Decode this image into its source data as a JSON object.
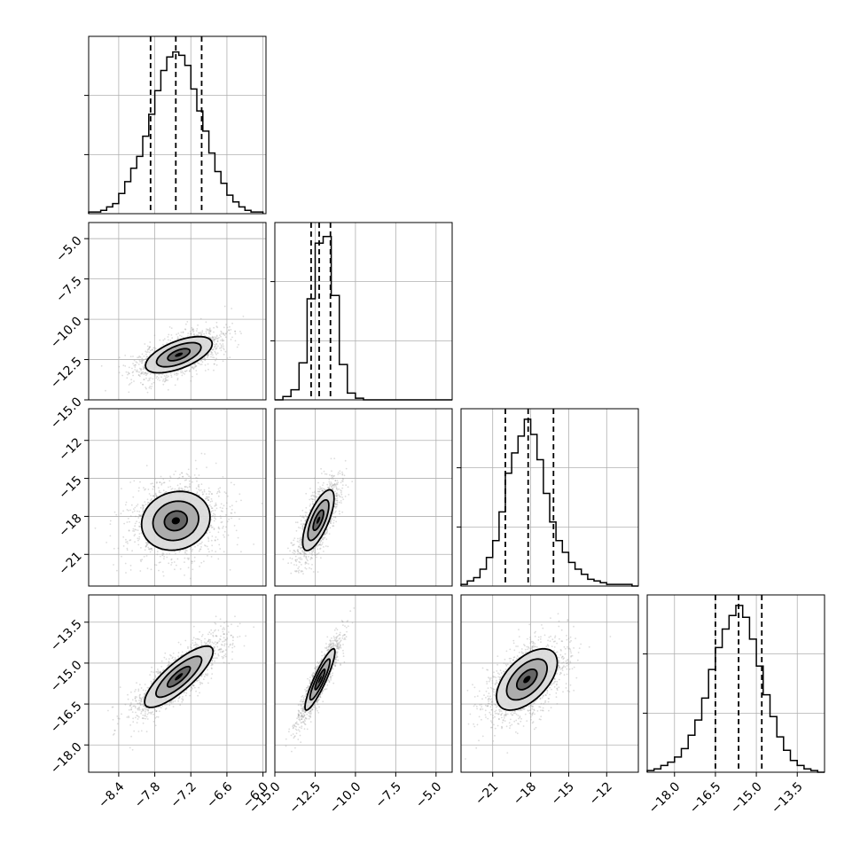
{
  "figure": {
    "type": "corner-plot",
    "n_params": 4
  },
  "colors": {
    "line": "#000000",
    "grid": "#b0b0b0",
    "points": "#9a9a9a",
    "frame": "#000000"
  },
  "chart_data": [
    {
      "type": "histogram",
      "row": 0,
      "col": 0,
      "xlim": [
        -8.9,
        -5.95
      ],
      "bins": [
        -8.85,
        -8.75,
        -8.65,
        -8.55,
        -8.45,
        -8.35,
        -8.25,
        -8.15,
        -8.05,
        -7.95,
        -7.85,
        -7.75,
        -7.65,
        -7.55,
        -7.45,
        -7.35,
        -7.25,
        -7.15,
        -7.05,
        -6.95,
        -6.85,
        -6.75,
        -6.65,
        -6.55,
        -6.45,
        -6.35,
        -6.25,
        -6.15,
        -6.05
      ],
      "counts": [
        0.01,
        0.01,
        0.02,
        0.04,
        0.06,
        0.12,
        0.19,
        0.27,
        0.34,
        0.46,
        0.59,
        0.73,
        0.85,
        0.93,
        0.96,
        0.94,
        0.88,
        0.74,
        0.61,
        0.49,
        0.36,
        0.25,
        0.18,
        0.11,
        0.07,
        0.04,
        0.02,
        0.01,
        0.01
      ],
      "quantiles": [
        -7.87,
        -7.45,
        -7.02
      ],
      "ymax": 1.0
    },
    {
      "type": "histogram",
      "row": 1,
      "col": 1,
      "xlim": [
        -15.0,
        -4.0
      ],
      "bins": [
        -14.75,
        -14.25,
        -13.75,
        -13.25,
        -12.75,
        -12.25,
        -11.75,
        -11.25,
        -10.75,
        -10.25,
        -9.75,
        -9.25,
        -8.75,
        -8.25,
        -7.75,
        -7.25,
        -6.75,
        -6.25,
        -5.75,
        -5.25,
        -4.75,
        -4.25
      ],
      "counts": [
        0.0,
        0.02,
        0.06,
        0.22,
        0.6,
        0.93,
        0.97,
        0.62,
        0.21,
        0.04,
        0.01,
        0.0,
        0.0,
        0.0,
        0.0,
        0.0,
        0.0,
        0.0,
        0.0,
        0.0,
        0.0,
        0.0
      ],
      "quantiles": [
        -12.75,
        -12.25,
        -11.55
      ],
      "ymax": 1.0
    },
    {
      "type": "histogram",
      "row": 2,
      "col": 2,
      "xlim": [
        -23.5,
        -9.5
      ],
      "bins": [
        -23.25,
        -22.75,
        -22.25,
        -21.75,
        -21.25,
        -20.75,
        -20.25,
        -19.75,
        -19.25,
        -18.75,
        -18.25,
        -17.75,
        -17.25,
        -16.75,
        -16.25,
        -15.75,
        -15.25,
        -14.75,
        -14.25,
        -13.75,
        -13.25,
        -12.75,
        -12.25,
        -11.75,
        -11.25,
        -10.75,
        -10.25,
        -9.75
      ],
      "counts": [
        0.01,
        0.03,
        0.05,
        0.1,
        0.17,
        0.27,
        0.44,
        0.67,
        0.79,
        0.89,
        0.99,
        0.9,
        0.75,
        0.55,
        0.38,
        0.27,
        0.2,
        0.14,
        0.1,
        0.07,
        0.04,
        0.03,
        0.02,
        0.01,
        0.01,
        0.01,
        0.01,
        0.0
      ],
      "quantiles": [
        -20.0,
        -18.2,
        -16.2
      ],
      "ymax": 1.0
    },
    {
      "type": "histogram",
      "row": 3,
      "col": 3,
      "xlim": [
        -19.0,
        -12.5
      ],
      "bins": [
        -18.875,
        -18.625,
        -18.375,
        -18.125,
        -17.875,
        -17.625,
        -17.375,
        -17.125,
        -16.875,
        -16.625,
        -16.375,
        -16.125,
        -15.875,
        -15.625,
        -15.375,
        -15.125,
        -14.875,
        -14.625,
        -14.375,
        -14.125,
        -13.875,
        -13.625,
        -13.375,
        -13.125,
        -12.875,
        -12.625
      ],
      "counts": [
        0.01,
        0.02,
        0.04,
        0.06,
        0.09,
        0.14,
        0.22,
        0.31,
        0.44,
        0.61,
        0.74,
        0.85,
        0.93,
        0.99,
        0.92,
        0.79,
        0.63,
        0.46,
        0.33,
        0.21,
        0.13,
        0.07,
        0.04,
        0.02,
        0.01,
        0.0
      ],
      "quantiles": [
        -16.5,
        -15.65,
        -14.8
      ],
      "ymax": 1.0
    },
    {
      "type": "scatter",
      "row": 1,
      "col": 0,
      "xlim": [
        -8.9,
        -5.95
      ],
      "ylim": [
        -15.0,
        -4.0
      ],
      "center": [
        -7.4,
        -12.2
      ],
      "sd": [
        0.37,
        0.75
      ],
      "rho": 0.6,
      "contour_levels": [
        1.5,
        1.0,
        0.5
      ],
      "n_points": 1500,
      "seed": 11
    },
    {
      "type": "scatter",
      "row": 2,
      "col": 0,
      "xlim": [
        -8.9,
        -5.95
      ],
      "ylim": [
        -23.5,
        -9.5
      ],
      "center": [
        -7.45,
        -18.35
      ],
      "sd": [
        0.38,
        1.55
      ],
      "rho": 0.12,
      "contour_levels": [
        1.5,
        1.0,
        0.5
      ],
      "n_points": 1500,
      "seed": 23
    },
    {
      "type": "scatter",
      "row": 2,
      "col": 1,
      "xlim": [
        -15.0,
        -4.0
      ],
      "ylim": [
        -23.5,
        -9.5
      ],
      "center": [
        -12.3,
        -18.3
      ],
      "sd": [
        0.65,
        1.6
      ],
      "rho": 0.72,
      "contour_levels": [
        1.5,
        1.0,
        0.5
      ],
      "n_points": 1500,
      "seed": 37
    },
    {
      "type": "scatter",
      "row": 3,
      "col": 0,
      "xlim": [
        -8.9,
        -5.95
      ],
      "ylim": [
        -19.0,
        -12.5
      ],
      "center": [
        -7.4,
        -15.5
      ],
      "sd": [
        0.38,
        0.75
      ],
      "rho": 0.82,
      "contour_levels": [
        1.5,
        1.0,
        0.5
      ],
      "n_points": 1500,
      "seed": 41
    },
    {
      "type": "scatter",
      "row": 3,
      "col": 1,
      "xlim": [
        -15.0,
        -4.0
      ],
      "ylim": [
        -19.0,
        -12.5
      ],
      "center": [
        -12.2,
        -15.6
      ],
      "sd": [
        0.62,
        0.75
      ],
      "rho": 0.9,
      "contour_levels": [
        1.5,
        1.0,
        0.5
      ],
      "n_points": 1500,
      "seed": 53
    },
    {
      "type": "scatter",
      "row": 3,
      "col": 2,
      "xlim": [
        -23.5,
        -9.5
      ],
      "ylim": [
        -19.0,
        -12.5
      ],
      "center": [
        -18.3,
        -15.6
      ],
      "sd": [
        1.6,
        0.75
      ],
      "rho": 0.55,
      "contour_levels": [
        1.5,
        1.0,
        0.5
      ],
      "n_points": 1500,
      "seed": 67
    }
  ],
  "axes": {
    "x": [
      {
        "col": 0,
        "ticks": [
          -8.4,
          -7.8,
          -7.2,
          -6.6,
          -6.0
        ],
        "labels": [
          "−8.4",
          "−7.8",
          "−7.2",
          "−6.6",
          "−6.0"
        ]
      },
      {
        "col": 1,
        "ticks": [
          -15.0,
          -12.5,
          -10.0,
          -7.5,
          -5.0
        ],
        "labels": [
          "−15.0",
          "−12.5",
          "−10.0",
          "−7.5",
          "−5.0"
        ]
      },
      {
        "col": 2,
        "ticks": [
          -21,
          -18,
          -15,
          -12
        ],
        "labels": [
          "−21",
          "−18",
          "−15",
          "−12"
        ]
      },
      {
        "col": 3,
        "ticks": [
          -18.0,
          -16.5,
          -15.0,
          -13.5
        ],
        "labels": [
          "−18.0",
          "−16.5",
          "−15.0",
          "−13.5"
        ]
      }
    ],
    "y": [
      {
        "row": 1,
        "ticks": [
          -5.0,
          -7.5,
          -10.0,
          -12.5,
          -15.0
        ],
        "labels": [
          "−5.0",
          "−7.5",
          "−10.0",
          "−12.5",
          "−15.0"
        ]
      },
      {
        "row": 2,
        "ticks": [
          -12,
          -15,
          -18,
          -21
        ],
        "labels": [
          "−12",
          "−15",
          "−18",
          "−21"
        ]
      },
      {
        "row": 3,
        "ticks": [
          -13.5,
          -15.0,
          -16.5,
          -18.0
        ],
        "labels": [
          "−13.5",
          "−15.0",
          "−16.5",
          "−18.0"
        ]
      }
    ],
    "hist_yticks": [
      0.333,
      0.667
    ]
  }
}
